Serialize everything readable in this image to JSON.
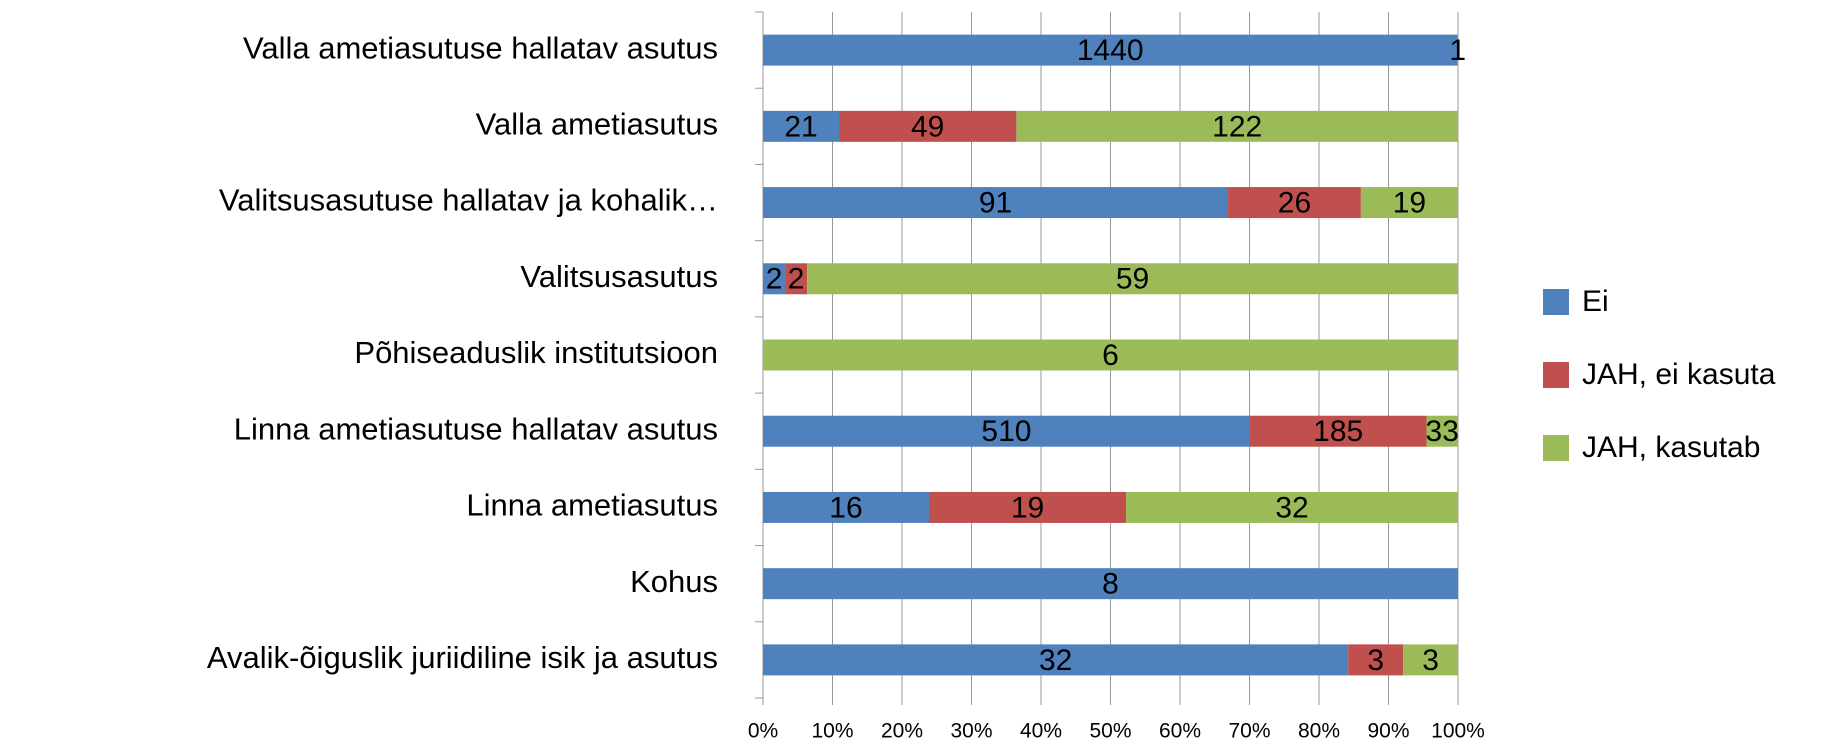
{
  "chart_data": {
    "type": "bar",
    "orientation": "horizontal",
    "stacking": "percent",
    "categories": [
      "Valla ametiasutuse hallatav asutus",
      "Valla ametiasutus",
      "Valitsusasutuse hallatav ja kohalik…",
      "Valitsusasutus",
      "Põhiseaduslik institutsioon",
      "Linna ametiasutuse hallatav asutus",
      "Linna ametiasutus",
      "Kohus",
      "Avalik-õiguslik juriidiline isik ja asutus"
    ],
    "series": [
      {
        "name": "Ei",
        "color": "#4f81bd",
        "values": [
          1440,
          21,
          91,
          2,
          null,
          510,
          16,
          8,
          32
        ]
      },
      {
        "name": "JAH, ei kasuta",
        "color": "#c0504d",
        "values": [
          null,
          49,
          26,
          2,
          null,
          185,
          19,
          null,
          3
        ]
      },
      {
        "name": "JAH, kasutab",
        "color": "#9bbb59",
        "values": [
          1,
          122,
          19,
          59,
          6,
          33,
          32,
          null,
          3
        ]
      }
    ],
    "xlim": [
      0,
      100
    ],
    "xticks": [
      {
        "value": 0,
        "label": "0%"
      },
      {
        "value": 10,
        "label": "10%"
      },
      {
        "value": 20,
        "label": "20%"
      },
      {
        "value": 30,
        "label": "30%"
      },
      {
        "value": 40,
        "label": "40%"
      },
      {
        "value": 50,
        "label": "50%"
      },
      {
        "value": 60,
        "label": "60%"
      },
      {
        "value": 70,
        "label": "70%"
      },
      {
        "value": 80,
        "label": "80%"
      },
      {
        "value": 90,
        "label": "90%"
      },
      {
        "value": 100,
        "label": "100%"
      }
    ],
    "grid": true,
    "legend": "right"
  }
}
